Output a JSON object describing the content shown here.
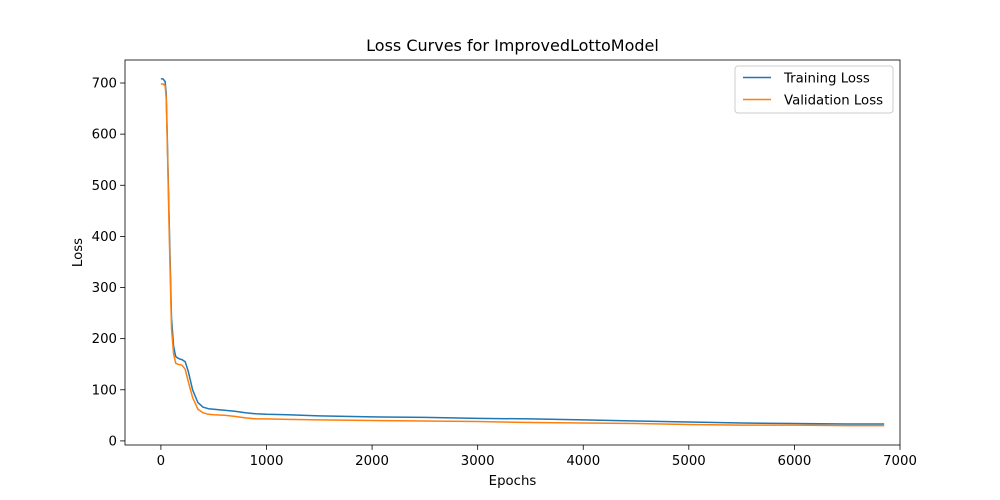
{
  "chart_data": {
    "type": "line",
    "title": "Loss Curves for ImprovedLottoModel",
    "xlabel": "Epochs",
    "ylabel": "Loss",
    "xlim": [
      -340,
      7000
    ],
    "ylim": [
      -8,
      745
    ],
    "xticks": [
      0,
      1000,
      2000,
      3000,
      4000,
      5000,
      6000,
      7000
    ],
    "yticks": [
      0,
      100,
      200,
      300,
      400,
      500,
      600,
      700
    ],
    "grid": false,
    "legend": "top-right",
    "series": [
      {
        "name": "Training Loss",
        "color": "#1f77b4",
        "x": [
          0,
          20,
          40,
          50,
          60,
          80,
          100,
          120,
          140,
          160,
          180,
          200,
          230,
          260,
          300,
          350,
          400,
          450,
          500,
          600,
          700,
          800,
          900,
          1000,
          1200,
          1500,
          2000,
          2500,
          3000,
          3500,
          4000,
          4500,
          5000,
          5500,
          6000,
          6500,
          6850
        ],
        "y": [
          708,
          708,
          703,
          680,
          600,
          420,
          240,
          185,
          165,
          162,
          160,
          159,
          155,
          135,
          100,
          75,
          66,
          63,
          62,
          60,
          58,
          55,
          53,
          52,
          51,
          49,
          47,
          46,
          44,
          43,
          41,
          39,
          37,
          35,
          34,
          33,
          33
        ]
      },
      {
        "name": "Validation Loss",
        "color": "#ff7f0e",
        "x": [
          0,
          20,
          40,
          50,
          60,
          80,
          100,
          120,
          140,
          160,
          180,
          200,
          230,
          260,
          300,
          350,
          400,
          450,
          500,
          600,
          700,
          800,
          900,
          1000,
          1200,
          1500,
          2000,
          2500,
          3000,
          3500,
          4000,
          4500,
          5000,
          5500,
          6000,
          6500,
          6850
        ],
        "y": [
          698,
          698,
          695,
          670,
          590,
          400,
          220,
          170,
          152,
          150,
          149,
          148,
          140,
          115,
          85,
          62,
          55,
          52,
          51,
          50,
          48,
          45,
          43,
          43,
          42,
          41,
          40,
          39,
          38,
          36,
          35,
          34,
          32,
          31,
          31,
          30,
          30
        ]
      }
    ]
  }
}
